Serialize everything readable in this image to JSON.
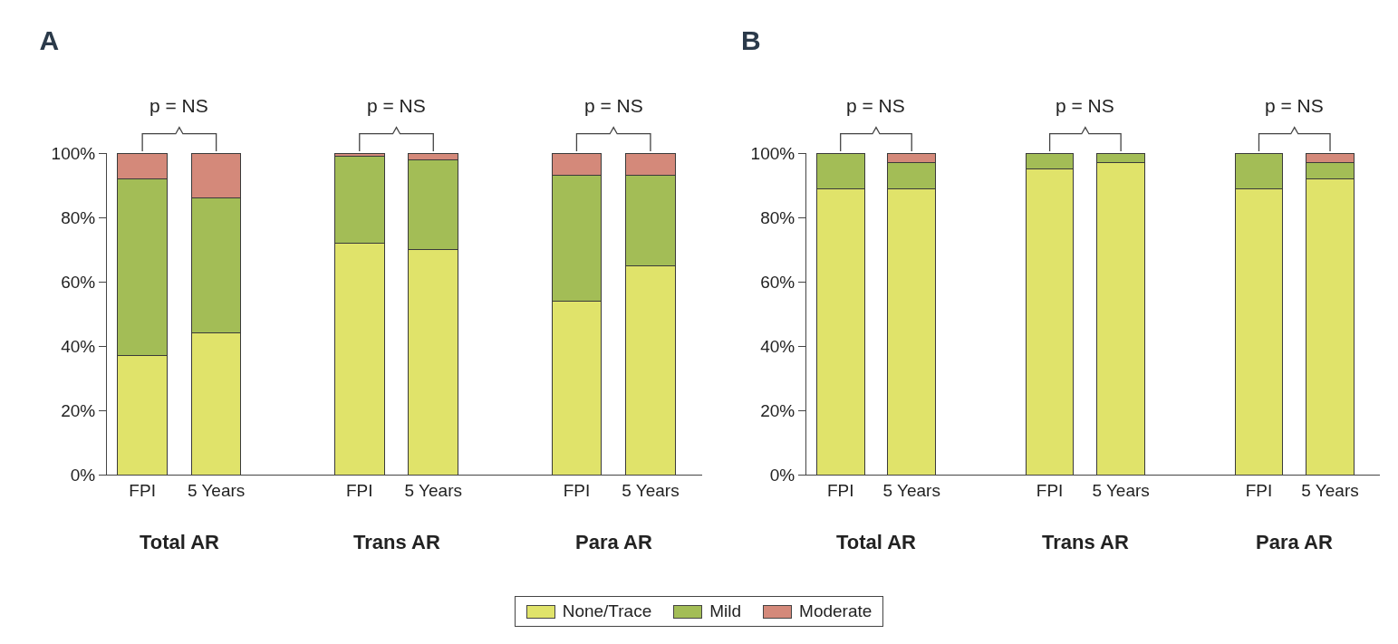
{
  "chart_data": [
    {
      "type": "bar",
      "title": "A",
      "stacked": true,
      "legend": "bottom",
      "grid": false,
      "categories": [
        "FPI",
        "5 Years",
        "FPI",
        "5 Years",
        "FPI",
        "5 Years"
      ],
      "series": [
        {
          "name": "None/Trace",
          "color": "#e0e36a",
          "values": [
            37,
            44,
            72,
            70,
            54,
            65
          ]
        },
        {
          "name": "Mild",
          "color": "#a3bd56",
          "values": [
            55,
            42,
            27,
            28,
            39,
            28
          ]
        },
        {
          "name": "Moderate",
          "color": "#d4897a",
          "values": [
            8,
            14,
            1,
            2,
            7,
            7
          ]
        }
      ],
      "ylim": [
        0,
        100
      ],
      "yticks": [
        {
          "value": 0,
          "label": "0%"
        },
        {
          "value": 20,
          "label": "20%"
        },
        {
          "value": 40,
          "label": "40%"
        },
        {
          "value": 60,
          "label": "60%"
        },
        {
          "value": 80,
          "label": "80%"
        },
        {
          "value": 100,
          "label": "100%"
        }
      ],
      "annotations": [
        "p = NS",
        "p = NS",
        "p = NS",
        "Total AR",
        "Trans AR",
        "Para AR"
      ]
    },
    {
      "type": "bar",
      "title": "B",
      "stacked": true,
      "grid": false,
      "categories": [
        "FPI",
        "5 Years",
        "FPI",
        "5 Years",
        "FPI",
        "5 Years"
      ],
      "series": [
        {
          "color": "#e0e36a",
          "values": [
            89,
            89,
            95,
            97,
            89,
            92
          ]
        },
        {
          "color": "#a3bd56",
          "values": [
            11,
            8,
            5,
            3,
            11,
            5
          ]
        },
        {
          "color": "#d4897a",
          "values": [
            0,
            3,
            0,
            0,
            0,
            3
          ]
        }
      ],
      "ylim": [
        0,
        100
      ],
      "yticks": [
        {
          "value": 0,
          "label": "0%"
        },
        {
          "value": 20,
          "label": "20%"
        },
        {
          "value": 40,
          "label": "40%"
        },
        {
          "value": 60,
          "label": "60%"
        },
        {
          "value": 80,
          "label": "80%"
        },
        {
          "value": 100,
          "label": "100%"
        }
      ],
      "annotations": [
        "p = NS",
        "p = NS",
        "p = NS",
        "Total AR",
        "Trans AR",
        "Para AR"
      ]
    }
  ]
}
